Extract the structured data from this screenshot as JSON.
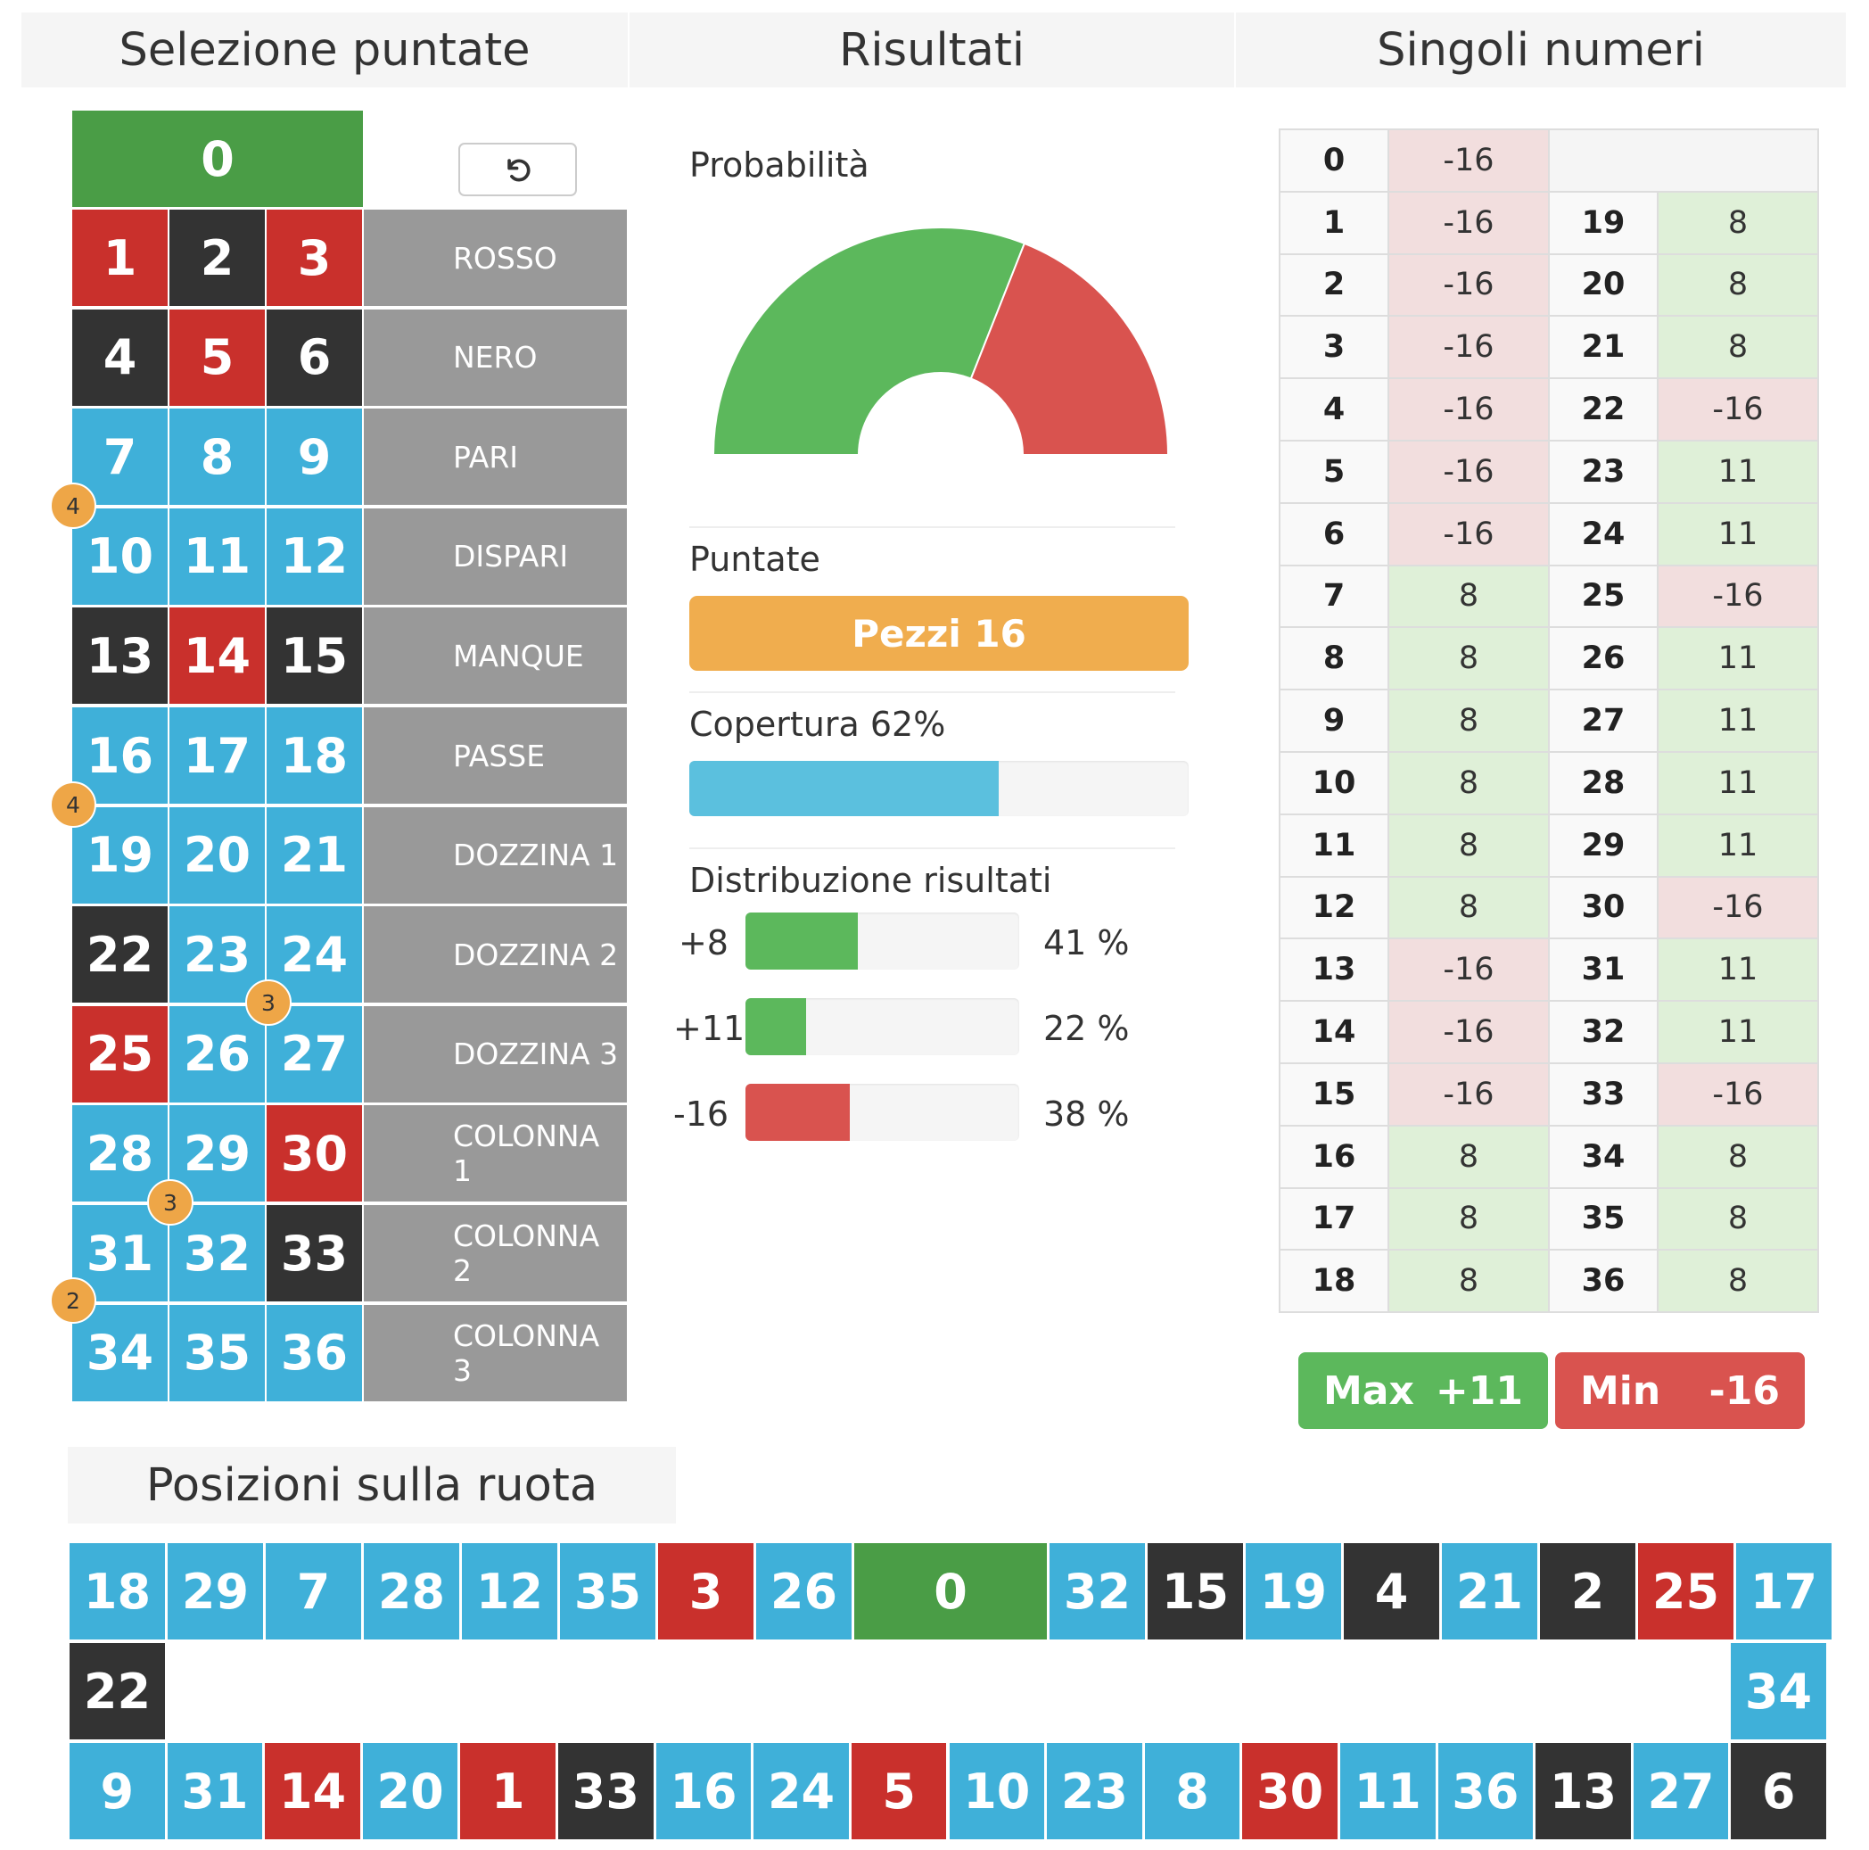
{
  "headers": {
    "selezione": "Selezione puntate",
    "risultati": "Risultati",
    "singoli": "Singoli numeri",
    "posizioni": "Posizioni sulla ruota"
  },
  "colors": {
    "red": "#c9302c",
    "black": "#333333",
    "blue": "#3fb0d9",
    "green": "#4a9d46",
    "orange": "#eea647",
    "win": "#5cb85c",
    "loss": "#d9534f",
    "info": "#5bc0de"
  },
  "board": {
    "zero": "0",
    "reset_icon": "undo-icon",
    "numbers": [
      {
        "n": "1",
        "c": "red"
      },
      {
        "n": "2",
        "c": "black"
      },
      {
        "n": "3",
        "c": "red"
      },
      {
        "n": "4",
        "c": "black"
      },
      {
        "n": "5",
        "c": "red"
      },
      {
        "n": "6",
        "c": "black"
      },
      {
        "n": "7",
        "c": "blue"
      },
      {
        "n": "8",
        "c": "blue"
      },
      {
        "n": "9",
        "c": "blue"
      },
      {
        "n": "10",
        "c": "blue"
      },
      {
        "n": "11",
        "c": "blue"
      },
      {
        "n": "12",
        "c": "blue"
      },
      {
        "n": "13",
        "c": "black"
      },
      {
        "n": "14",
        "c": "red"
      },
      {
        "n": "15",
        "c": "black"
      },
      {
        "n": "16",
        "c": "blue"
      },
      {
        "n": "17",
        "c": "blue"
      },
      {
        "n": "18",
        "c": "blue"
      },
      {
        "n": "19",
        "c": "blue"
      },
      {
        "n": "20",
        "c": "blue"
      },
      {
        "n": "21",
        "c": "blue"
      },
      {
        "n": "22",
        "c": "black"
      },
      {
        "n": "23",
        "c": "blue"
      },
      {
        "n": "24",
        "c": "blue"
      },
      {
        "n": "25",
        "c": "red"
      },
      {
        "n": "26",
        "c": "blue"
      },
      {
        "n": "27",
        "c": "blue"
      },
      {
        "n": "28",
        "c": "blue"
      },
      {
        "n": "29",
        "c": "blue"
      },
      {
        "n": "30",
        "c": "red"
      },
      {
        "n": "31",
        "c": "blue"
      },
      {
        "n": "32",
        "c": "blue"
      },
      {
        "n": "33",
        "c": "black"
      },
      {
        "n": "34",
        "c": "blue"
      },
      {
        "n": "35",
        "c": "blue"
      },
      {
        "n": "36",
        "c": "blue"
      }
    ],
    "outside": [
      "ROSSO",
      "NERO",
      "PARI",
      "DISPARI",
      "MANQUE",
      "PASSE",
      "DOZZINA 1",
      "DOZZINA 2",
      "DOZZINA 3",
      "COLONNA 1",
      "COLONNA 2",
      "COLONNA 3"
    ],
    "chips": [
      {
        "value": "4",
        "between": "7-9 / 10-12"
      },
      {
        "value": "4",
        "between": "16-18 / 19-21"
      },
      {
        "value": "3",
        "between": "23-24-26-27"
      },
      {
        "value": "3",
        "between": "28-29-31-32"
      },
      {
        "value": "2",
        "between": "34-36"
      }
    ]
  },
  "results": {
    "probabilita_label": "Probabilità",
    "gauge": {
      "win_fraction": 0.62,
      "loss_fraction": 0.38
    },
    "puntate_label": "Puntate",
    "pezzi_label": "Pezzi 16",
    "copertura_label": "Copertura 62%",
    "copertura_value": 0.62,
    "distribuzione_label": "Distribuzione risultati",
    "distribution": [
      {
        "label": "+8",
        "percent": 41,
        "text": "41 %",
        "color": "win"
      },
      {
        "label": "+11",
        "percent": 22,
        "text": "22 %",
        "color": "win"
      },
      {
        "label": "-16",
        "percent": 38,
        "text": "38 %",
        "color": "loss"
      }
    ]
  },
  "singoli": {
    "zero": {
      "n": "0",
      "v": "-16"
    },
    "left": [
      {
        "n": "1",
        "v": "-16"
      },
      {
        "n": "2",
        "v": "-16"
      },
      {
        "n": "3",
        "v": "-16"
      },
      {
        "n": "4",
        "v": "-16"
      },
      {
        "n": "5",
        "v": "-16"
      },
      {
        "n": "6",
        "v": "-16"
      },
      {
        "n": "7",
        "v": "8"
      },
      {
        "n": "8",
        "v": "8"
      },
      {
        "n": "9",
        "v": "8"
      },
      {
        "n": "10",
        "v": "8"
      },
      {
        "n": "11",
        "v": "8"
      },
      {
        "n": "12",
        "v": "8"
      },
      {
        "n": "13",
        "v": "-16"
      },
      {
        "n": "14",
        "v": "-16"
      },
      {
        "n": "15",
        "v": "-16"
      },
      {
        "n": "16",
        "v": "8"
      },
      {
        "n": "17",
        "v": "8"
      },
      {
        "n": "18",
        "v": "8"
      }
    ],
    "right": [
      {
        "n": "19",
        "v": "8"
      },
      {
        "n": "20",
        "v": "8"
      },
      {
        "n": "21",
        "v": "8"
      },
      {
        "n": "22",
        "v": "-16"
      },
      {
        "n": "23",
        "v": "11"
      },
      {
        "n": "24",
        "v": "11"
      },
      {
        "n": "25",
        "v": "-16"
      },
      {
        "n": "26",
        "v": "11"
      },
      {
        "n": "27",
        "v": "11"
      },
      {
        "n": "28",
        "v": "11"
      },
      {
        "n": "29",
        "v": "11"
      },
      {
        "n": "30",
        "v": "-16"
      },
      {
        "n": "31",
        "v": "11"
      },
      {
        "n": "32",
        "v": "11"
      },
      {
        "n": "33",
        "v": "-16"
      },
      {
        "n": "34",
        "v": "8"
      },
      {
        "n": "35",
        "v": "8"
      },
      {
        "n": "36",
        "v": "8"
      }
    ],
    "max_label": "Max",
    "max_value": "+11",
    "min_label": "Min",
    "min_value": "-16"
  },
  "wheel": {
    "top": [
      {
        "n": "18",
        "c": "blue"
      },
      {
        "n": "29",
        "c": "blue"
      },
      {
        "n": "7",
        "c": "blue"
      },
      {
        "n": "28",
        "c": "blue"
      },
      {
        "n": "12",
        "c": "blue"
      },
      {
        "n": "35",
        "c": "blue"
      },
      {
        "n": "3",
        "c": "red"
      },
      {
        "n": "26",
        "c": "blue"
      },
      {
        "n": "0",
        "c": "green"
      },
      {
        "n": "32",
        "c": "blue"
      },
      {
        "n": "15",
        "c": "black"
      },
      {
        "n": "19",
        "c": "blue"
      },
      {
        "n": "4",
        "c": "black"
      },
      {
        "n": "21",
        "c": "blue"
      },
      {
        "n": "2",
        "c": "black"
      },
      {
        "n": "25",
        "c": "red"
      },
      {
        "n": "17",
        "c": "blue"
      }
    ],
    "left_side": {
      "n": "22",
      "c": "black"
    },
    "right_side": {
      "n": "34",
      "c": "blue"
    },
    "bottom": [
      {
        "n": "9",
        "c": "blue"
      },
      {
        "n": "31",
        "c": "blue"
      },
      {
        "n": "14",
        "c": "red"
      },
      {
        "n": "20",
        "c": "blue"
      },
      {
        "n": "1",
        "c": "red"
      },
      {
        "n": "33",
        "c": "black"
      },
      {
        "n": "16",
        "c": "blue"
      },
      {
        "n": "24",
        "c": "blue"
      },
      {
        "n": "5",
        "c": "red"
      },
      {
        "n": "10",
        "c": "blue"
      },
      {
        "n": "23",
        "c": "blue"
      },
      {
        "n": "8",
        "c": "blue"
      },
      {
        "n": "30",
        "c": "red"
      },
      {
        "n": "11",
        "c": "blue"
      },
      {
        "n": "36",
        "c": "blue"
      },
      {
        "n": "13",
        "c": "black"
      },
      {
        "n": "27",
        "c": "blue"
      },
      {
        "n": "6",
        "c": "black"
      }
    ]
  }
}
